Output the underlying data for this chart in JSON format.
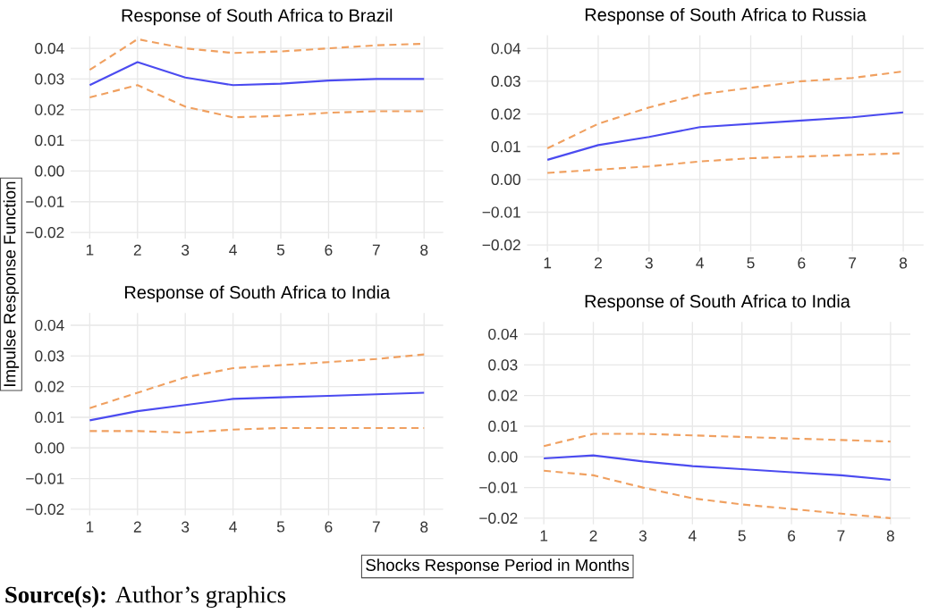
{
  "chart_data": [
    {
      "type": "line",
      "title": "Response of South Africa to Brazil",
      "ylabel": "Impulse Response Function",
      "categories": [
        "1",
        "2",
        "3",
        "4",
        "5",
        "6",
        "7",
        "8"
      ],
      "series": [
        {
          "color": "#4b4bf0",
          "line_style": "solid",
          "values": [
            0.028,
            0.0355,
            0.0305,
            0.028,
            0.0285,
            0.0295,
            0.03,
            0.03
          ]
        },
        {
          "color": "#f0a060",
          "line_style": "dashed",
          "values": [
            0.033,
            0.043,
            0.04,
            0.0385,
            0.039,
            0.04,
            0.041,
            0.0415
          ]
        },
        {
          "color": "#f0a060",
          "line_style": "dashed",
          "values": [
            0.024,
            0.028,
            0.021,
            0.0175,
            0.018,
            0.019,
            0.0195,
            0.0195
          ]
        }
      ],
      "ylim": [
        -0.022,
        0.044
      ],
      "yticks": [
        {
          "value": -0.02,
          "label": "−0.02"
        },
        {
          "value": -0.01,
          "label": "−0.01"
        },
        {
          "value": 0,
          "label": "0.00"
        },
        0.01,
        0.02,
        0.03,
        0.04
      ],
      "grid": true
    },
    {
      "type": "line",
      "title": "Response of South Africa to Russia",
      "categories": [
        "1",
        "2",
        "3",
        "4",
        "5",
        "6",
        "7",
        "8"
      ],
      "series": [
        {
          "color": "#4b4bf0",
          "line_style": "solid",
          "values": [
            0.006,
            0.0105,
            0.013,
            0.016,
            0.017,
            0.018,
            0.019,
            0.0205
          ]
        },
        {
          "color": "#f0a060",
          "line_style": "dashed",
          "values": [
            0.0095,
            0.017,
            0.022,
            0.026,
            0.028,
            0.03,
            0.031,
            0.033
          ]
        },
        {
          "color": "#f0a060",
          "line_style": "dashed",
          "values": [
            0.002,
            0.003,
            0.004,
            0.0055,
            0.0065,
            0.007,
            0.0075,
            0.008
          ]
        }
      ],
      "ylim": [
        -0.022,
        0.044
      ],
      "yticks": [
        {
          "value": -0.02,
          "label": "−0.02"
        },
        {
          "value": -0.01,
          "label": "−0.01"
        },
        {
          "value": 0,
          "label": "0.00"
        },
        0.01,
        0.02,
        0.03,
        0.04
      ],
      "grid": true
    },
    {
      "type": "line",
      "title": "Response of South Africa to India",
      "categories": [
        "1",
        "2",
        "3",
        "4",
        "5",
        "6",
        "7",
        "8"
      ],
      "series": [
        {
          "color": "#4b4bf0",
          "line_style": "solid",
          "values": [
            0.009,
            0.012,
            0.014,
            0.016,
            0.0165,
            0.017,
            0.0175,
            0.018
          ]
        },
        {
          "color": "#f0a060",
          "line_style": "dashed",
          "values": [
            0.013,
            0.018,
            0.023,
            0.026,
            0.027,
            0.028,
            0.029,
            0.0305
          ]
        },
        {
          "color": "#f0a060",
          "line_style": "dashed",
          "values": [
            0.0055,
            0.0055,
            0.005,
            0.006,
            0.0065,
            0.0065,
            0.0065,
            0.0065
          ]
        }
      ],
      "ylim": [
        -0.022,
        0.044
      ],
      "yticks": [
        {
          "value": -0.02,
          "label": "−0.02"
        },
        {
          "value": -0.01,
          "label": "−0.01"
        },
        {
          "value": 0,
          "label": "0.00"
        },
        0.01,
        0.02,
        0.03,
        0.04
      ],
      "grid": true,
      "annotations": [
        "**Source(s):** Author’s graphics"
      ]
    },
    {
      "type": "line",
      "title": "Response of South Africa to India",
      "xlabel": "Shocks Response Period in Months",
      "categories": [
        "1",
        "2",
        "3",
        "4",
        "5",
        "6",
        "7",
        "8"
      ],
      "series": [
        {
          "color": "#4b4bf0",
          "line_style": "solid",
          "values": [
            -0.0005,
            0.0005,
            -0.0015,
            -0.003,
            -0.004,
            -0.005,
            -0.006,
            -0.0075
          ]
        },
        {
          "color": "#f0a060",
          "line_style": "dashed",
          "values": [
            0.0035,
            0.0075,
            0.0075,
            0.007,
            0.0065,
            0.006,
            0.0055,
            0.005
          ]
        },
        {
          "color": "#f0a060",
          "line_style": "dashed",
          "values": [
            -0.0045,
            -0.006,
            -0.01,
            -0.0135,
            -0.0155,
            -0.017,
            -0.0185,
            -0.02
          ]
        }
      ],
      "ylim": [
        -0.022,
        0.044
      ],
      "yticks": [
        {
          "value": -0.02,
          "label": "−0.02"
        },
        {
          "value": -0.01,
          "label": "−0.01"
        },
        {
          "value": 0,
          "label": "0.00"
        },
        0.01,
        0.02,
        0.03,
        0.04
      ],
      "grid": true
    }
  ]
}
